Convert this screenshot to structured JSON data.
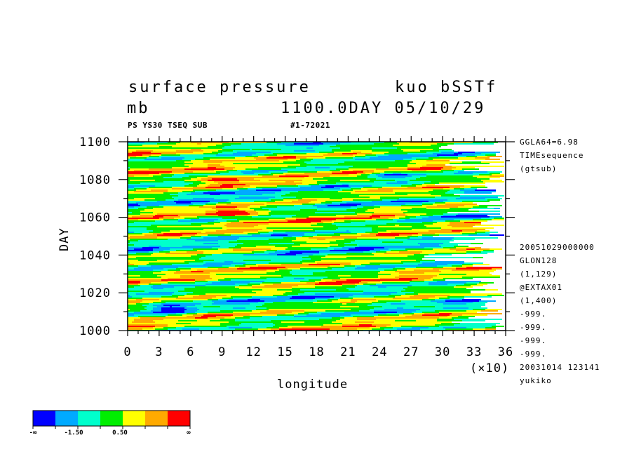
{
  "header": {
    "title_left": "surface pressure",
    "title_right": "kuo bSSTf",
    "units": "mb",
    "time_stamp": "1100.0DAY 05/10/29",
    "ps_line": "PS YS30 TSEQ SUB",
    "id_line": "#1-72021"
  },
  "side_info": {
    "top": [
      "GGLA64=6.98",
      "TIMEsequence",
      "(gtsub)"
    ],
    "bottom": [
      "20051029000000",
      "GLON128",
      "(1,129)",
      "@EXTAX01",
      "(1,400)",
      "-999.",
      "-999.",
      "-999.",
      "-999.",
      "20031014 123141",
      "yukiko"
    ]
  },
  "legend": {
    "labels": [
      "-∞",
      "-1.50",
      "0.50",
      "∞"
    ],
    "colors": [
      "#0000ff",
      "#00aaff",
      "#00ffcc",
      "#00ee00",
      "#ffff00",
      "#ffaa00",
      "#ff0000"
    ]
  },
  "chart_data": {
    "type": "heatmap",
    "title": "surface pressure",
    "xlabel": "longitude",
    "ylabel": "DAY",
    "x_multiplier": "(×10)",
    "xlim": [
      0,
      36
    ],
    "ylim": [
      1000,
      1100
    ],
    "x_ticks": [
      0,
      3,
      6,
      9,
      12,
      15,
      18,
      21,
      24,
      27,
      30,
      33,
      36
    ],
    "y_ticks": [
      1000,
      1020,
      1040,
      1060,
      1080,
      1100
    ],
    "pattern": "eastward-tilted streaky anomaly bands with red maxima near DAY 1062 and 1080 and blue minima near DAY 1083"
  }
}
